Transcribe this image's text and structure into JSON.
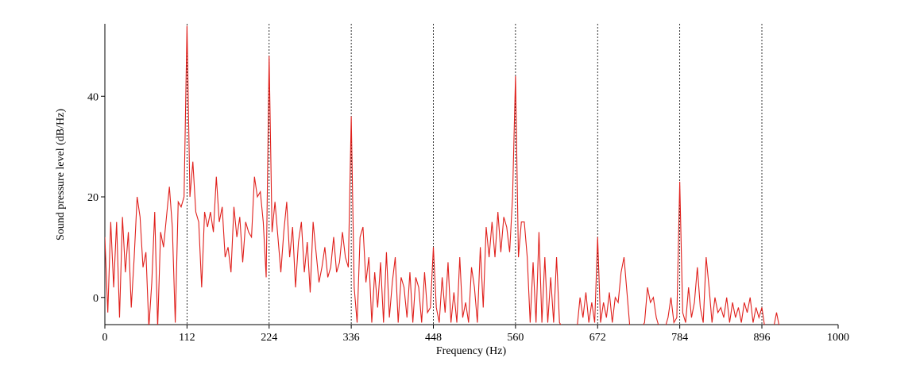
{
  "chart_data": {
    "type": "line",
    "xlabel": "Frequency (Hz)",
    "ylabel": "Sound pressure level (dB/Hz)",
    "xlim": [
      0,
      1000
    ],
    "ylim": [
      -5.4,
      54.4
    ],
    "xticks": [
      0,
      112,
      224,
      336,
      448,
      560,
      672,
      784,
      896,
      1000
    ],
    "yticks": [
      0,
      20,
      40
    ],
    "grid": "dotted-x",
    "x": [
      0,
      4,
      8,
      12,
      16,
      20,
      24,
      28,
      32,
      36,
      40,
      44,
      48,
      52,
      56,
      60,
      64,
      68,
      72,
      76,
      80,
      84,
      88,
      92,
      96,
      100,
      104,
      108,
      112,
      116,
      120,
      124,
      128,
      132,
      136,
      140,
      144,
      148,
      152,
      156,
      160,
      164,
      168,
      172,
      176,
      180,
      184,
      188,
      192,
      196,
      200,
      204,
      208,
      212,
      216,
      220,
      224,
      228,
      232,
      236,
      240,
      244,
      248,
      252,
      256,
      260,
      264,
      268,
      272,
      276,
      280,
      284,
      288,
      292,
      296,
      300,
      304,
      308,
      312,
      316,
      320,
      324,
      328,
      332,
      336,
      340,
      344,
      348,
      352,
      356,
      360,
      364,
      368,
      372,
      376,
      380,
      384,
      388,
      392,
      396,
      400,
      404,
      408,
      412,
      416,
      420,
      424,
      428,
      432,
      436,
      440,
      444,
      448,
      452,
      456,
      460,
      464,
      468,
      472,
      476,
      480,
      484,
      488,
      492,
      496,
      500,
      504,
      508,
      512,
      516,
      520,
      524,
      528,
      532,
      536,
      540,
      544,
      548,
      552,
      556,
      560,
      564,
      568,
      572,
      576,
      580,
      584,
      588,
      592,
      596,
      600,
      604,
      608,
      612,
      616,
      620,
      624,
      628,
      632,
      636,
      640,
      644,
      648,
      652,
      656,
      660,
      664,
      668,
      672,
      676,
      680,
      684,
      688,
      692,
      696,
      700,
      704,
      708,
      712,
      716,
      720,
      724,
      728,
      732,
      736,
      740,
      744,
      748,
      752,
      756,
      760,
      764,
      768,
      772,
      776,
      780,
      784,
      788,
      792,
      796,
      800,
      804,
      808,
      812,
      816,
      820,
      824,
      828,
      832,
      836,
      840,
      844,
      848,
      852,
      856,
      860,
      864,
      868,
      872,
      876,
      880,
      884,
      888,
      892,
      896,
      900,
      904,
      908,
      912,
      916,
      920,
      1000
    ],
    "series": [
      {
        "color": "#e0201c",
        "values": [
          12,
          -3,
          15,
          2,
          15,
          -4,
          16,
          5,
          13,
          -2,
          8,
          20,
          16,
          6,
          9,
          -6,
          3,
          17,
          -6,
          13,
          10,
          16,
          22,
          14,
          -5,
          19,
          18,
          20,
          54,
          20,
          27,
          17,
          15,
          2,
          17,
          14,
          17,
          13,
          24,
          15,
          18,
          8,
          10,
          5,
          18,
          12,
          16,
          7,
          15,
          13,
          12,
          24,
          20,
          21,
          15,
          4,
          48,
          13,
          19,
          12,
          5,
          13,
          19,
          8,
          14,
          2,
          11,
          15,
          5,
          11,
          1,
          15,
          9,
          3,
          6,
          10,
          4,
          6,
          12,
          5,
          7,
          13,
          8,
          6,
          36,
          2,
          -5,
          12,
          14,
          3,
          8,
          -5,
          5,
          -2,
          7,
          -5,
          9,
          -4,
          3,
          8,
          -5,
          4,
          2,
          -4,
          5,
          -5,
          4,
          2,
          -5,
          5,
          -3,
          -2,
          10,
          -2,
          -5,
          4,
          -3,
          7,
          -5,
          1,
          -5,
          8,
          -4,
          -1,
          -5,
          6,
          2,
          -5,
          10,
          -2,
          14,
          8,
          15,
          8,
          17,
          9,
          16,
          14,
          9,
          20,
          44,
          8,
          15,
          15,
          8,
          -5,
          7,
          -5,
          13,
          -5,
          8,
          -5,
          4,
          -5,
          8,
          -5,
          -6,
          -6,
          -6,
          -6,
          -6,
          -6,
          0,
          -4,
          1,
          -5,
          -1,
          -5,
          12,
          -5,
          -1,
          -4,
          1,
          -5,
          0,
          -1,
          5,
          8,
          1,
          -6,
          -6,
          -6,
          -6,
          -6,
          -5,
          2,
          -1,
          0,
          -4,
          -6,
          -6,
          -6,
          -4,
          0,
          -5,
          -4,
          23,
          -3,
          -5,
          2,
          -4,
          -1,
          6,
          -2,
          -5,
          8,
          2,
          -5,
          0,
          -3,
          -2,
          -4,
          0,
          -5,
          -1,
          -4,
          -2,
          -5,
          -1,
          -3,
          0,
          -5,
          -2,
          -4,
          -2,
          -6,
          -6,
          -6,
          -6,
          -3,
          -6,
          -6
        ]
      }
    ]
  }
}
